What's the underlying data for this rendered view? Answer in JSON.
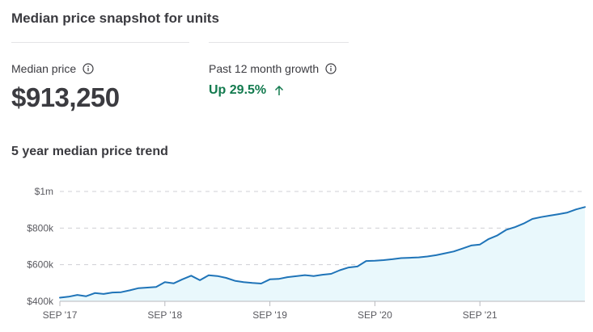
{
  "snapshot": {
    "title": "Median price snapshot for units",
    "median_label": "Median price",
    "median_value": "$913,250",
    "growth_label": "Past 12 month growth",
    "growth_value": "Up 29.5%"
  },
  "trend": {
    "title": "5 year median price trend"
  },
  "icons": {
    "info": "info-circle-icon",
    "growth": "arrow-up-icon"
  },
  "colors": {
    "line": "#1f74b8",
    "area": "#e9f8fc",
    "growth": "#127a4e",
    "grid": "#cfcfd4"
  },
  "chart_data": {
    "type": "area",
    "title": "",
    "xlabel": "",
    "ylabel": "",
    "ylim": [
      400000,
      1000000
    ],
    "grid": true,
    "y_ticks": [
      {
        "value": 400000,
        "label": "$400k"
      },
      {
        "value": 600000,
        "label": "$600k"
      },
      {
        "value": 800000,
        "label": "$800k"
      },
      {
        "value": 1000000,
        "label": "$1m"
      }
    ],
    "x_ticks": [
      {
        "value": "2017-09",
        "label": "SEP '17"
      },
      {
        "value": "2018-09",
        "label": "SEP '18"
      },
      {
        "value": "2019-09",
        "label": "SEP '19"
      },
      {
        "value": "2020-09",
        "label": "SEP '20"
      },
      {
        "value": "2021-09",
        "label": "SEP '21"
      }
    ],
    "x_range": [
      "2017-09",
      "2022-09"
    ],
    "series": [
      {
        "x": [
          "2017-09",
          "2017-10",
          "2017-11",
          "2017-12",
          "2018-01",
          "2018-02",
          "2018-03",
          "2018-04",
          "2018-05",
          "2018-06",
          "2018-07",
          "2018-08",
          "2018-09",
          "2018-10",
          "2018-11",
          "2018-12",
          "2019-01",
          "2019-02",
          "2019-03",
          "2019-04",
          "2019-05",
          "2019-06",
          "2019-07",
          "2019-08",
          "2019-09",
          "2019-10",
          "2019-11",
          "2019-12",
          "2020-01",
          "2020-02",
          "2020-03",
          "2020-04",
          "2020-05",
          "2020-06",
          "2020-07",
          "2020-08",
          "2020-09",
          "2020-10",
          "2020-11",
          "2020-12",
          "2021-01",
          "2021-02",
          "2021-03",
          "2021-04",
          "2021-05",
          "2021-06",
          "2021-07",
          "2021-08",
          "2021-09",
          "2021-10",
          "2021-11",
          "2021-12",
          "2022-01",
          "2022-02",
          "2022-03",
          "2022-04",
          "2022-05",
          "2022-06",
          "2022-07",
          "2022-08",
          "2022-09"
        ],
        "values": [
          420000,
          425000,
          435000,
          428000,
          445000,
          440000,
          448000,
          450000,
          460000,
          472000,
          475000,
          478000,
          505000,
          498000,
          520000,
          540000,
          515000,
          542000,
          538000,
          528000,
          512000,
          505000,
          500000,
          497000,
          520000,
          522000,
          532000,
          537000,
          543000,
          538000,
          545000,
          550000,
          570000,
          585000,
          590000,
          620000,
          622000,
          625000,
          630000,
          636000,
          638000,
          640000,
          645000,
          652000,
          662000,
          672000,
          688000,
          705000,
          710000,
          740000,
          760000,
          790000,
          805000,
          825000,
          850000,
          860000,
          868000,
          876000,
          885000,
          902000,
          915000
        ]
      }
    ]
  }
}
